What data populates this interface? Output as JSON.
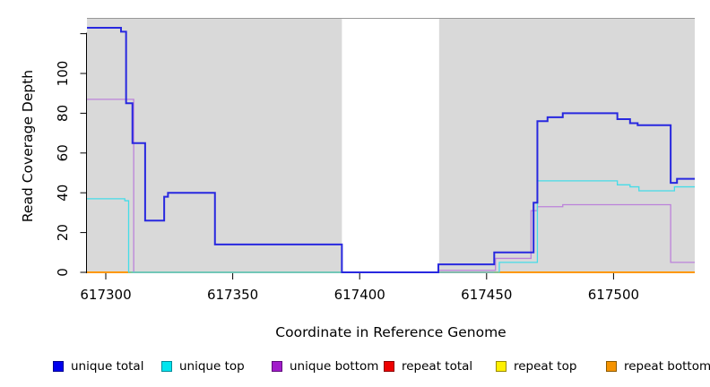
{
  "chart_data": {
    "type": "line",
    "title": "",
    "xlabel": "Coordinate in Reference Genome",
    "ylabel": "Read Coverage Depth",
    "xlim": [
      617292.6,
      617532
    ],
    "ylim": [
      0,
      127.5
    ],
    "grid": false,
    "legend_position": "bottom",
    "x_ticks": [
      {
        "value": 617300,
        "label": "617300"
      },
      {
        "value": 617350,
        "label": "617350"
      },
      {
        "value": 617400,
        "label": "617400"
      },
      {
        "value": 617450,
        "label": "617450"
      },
      {
        "value": 617500,
        "label": "617500"
      }
    ],
    "y_ticks": [
      {
        "value": 0,
        "label": "0"
      },
      {
        "value": 20,
        "label": "20"
      },
      {
        "value": 40,
        "label": "40"
      },
      {
        "value": 60,
        "label": "60"
      },
      {
        "value": 80,
        "label": "80"
      },
      {
        "value": 100,
        "label": "100"
      },
      {
        "value": 120,
        "label": ""
      }
    ],
    "background_bands": [
      {
        "x0": 617292.6,
        "x1": 617393,
        "color": "#D9D9D9"
      },
      {
        "x0": 617431.3,
        "x1": 617532,
        "color": "#D9D9D9"
      }
    ],
    "gap_band": {
      "x0": 617393,
      "x1": 617431.3,
      "color": "#FFFFFF"
    },
    "series": [
      {
        "name": "unique total",
        "color": "#2828DF",
        "width": 2,
        "steps": [
          [
            617292.6,
            123
          ],
          [
            617306,
            121
          ],
          [
            617308,
            85
          ],
          [
            617310.5,
            65
          ],
          [
            617315.5,
            26
          ],
          [
            617323,
            38
          ],
          [
            617324.5,
            40
          ],
          [
            617343,
            14
          ],
          [
            617393,
            0
          ],
          [
            617431,
            4
          ],
          [
            617453,
            10
          ],
          [
            617468.5,
            35
          ],
          [
            617470,
            76
          ],
          [
            617474,
            78
          ],
          [
            617480,
            80
          ],
          [
            617501.5,
            77
          ],
          [
            617506.5,
            75
          ],
          [
            617509.5,
            74
          ],
          [
            617522.5,
            45
          ],
          [
            617525,
            47
          ]
        ]
      },
      {
        "name": "unique top",
        "color": "#45DCE8",
        "width": 1.3,
        "steps": [
          [
            617292.6,
            37
          ],
          [
            617307.5,
            36
          ],
          [
            617309,
            0
          ],
          [
            617455,
            5
          ],
          [
            617470,
            46
          ],
          [
            617501.5,
            44
          ],
          [
            617506.5,
            43
          ],
          [
            617510,
            41
          ],
          [
            617524,
            43
          ]
        ]
      },
      {
        "name": "unique bottom",
        "color": "#BC82DA",
        "width": 1.3,
        "steps": [
          [
            617292.6,
            87
          ],
          [
            617311,
            0
          ],
          [
            617431,
            1
          ],
          [
            617453.5,
            7
          ],
          [
            617467.5,
            31
          ],
          [
            617470,
            33
          ],
          [
            617480,
            34
          ],
          [
            617522.5,
            5
          ]
        ]
      },
      {
        "name": "repeat total",
        "color": "#DD3333",
        "width": 1.3,
        "steps": [
          [
            617292.6,
            0
          ]
        ]
      },
      {
        "name": "repeat top",
        "color": "#EEEE00",
        "width": 1.3,
        "steps": [
          [
            617292.6,
            0
          ]
        ]
      },
      {
        "name": "repeat bottom",
        "color": "#FF9800",
        "width": 2,
        "steps": [
          [
            617292.6,
            0
          ]
        ]
      }
    ],
    "baseline_overlaps": [
      {
        "x0": 617310,
        "x1": 617393,
        "value": 0,
        "color": "#82C882"
      },
      {
        "x0": 617431.3,
        "x1": 617453,
        "value": 0,
        "color": "#DC7090"
      }
    ],
    "frame": {
      "top_border_color": "#999999",
      "axis_color": "#000000"
    }
  },
  "legend": {
    "items": [
      {
        "label": "unique total",
        "color": "#0000EE",
        "border": "#000090"
      },
      {
        "label": "unique top",
        "color": "#00E5EE",
        "border": "#008B99"
      },
      {
        "label": "unique bottom",
        "color": "#A21CCB",
        "border": "#5E0E7A"
      },
      {
        "label": "repeat total",
        "color": "#EE0000",
        "border": "#8B0000"
      },
      {
        "label": "repeat top",
        "color": "#FFF000",
        "border": "#998A00"
      },
      {
        "label": "repeat bottom",
        "color": "#F59300",
        "border": "#8B5A00"
      }
    ]
  }
}
